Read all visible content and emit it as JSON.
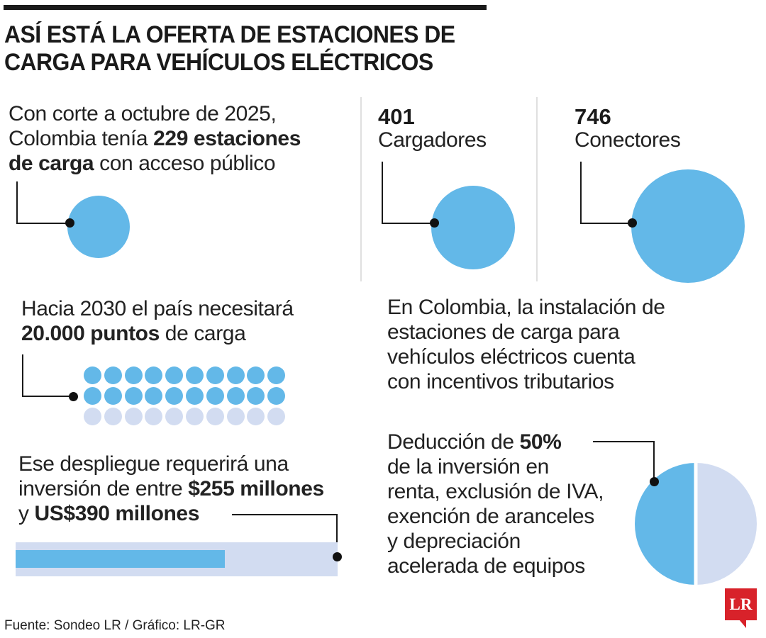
{
  "title_line1": "ASÍ ESTÁ LA OFERTA DE ESTACIONES DE",
  "title_line2": "CARGA PARA VEHÍCULOS ELÉCTRICOS",
  "stations": {
    "line1": "Con corte a octubre de 2025,",
    "line2_pre": "Colombia tenía ",
    "line2_bold": "229 estaciones",
    "line3_bold": "de carga",
    "line3_post": " con acceso público",
    "value": 229
  },
  "chargers": {
    "value": "401",
    "label": "Cargadores"
  },
  "connectors": {
    "value": "746",
    "label": "Conectores"
  },
  "target": {
    "line1": "Hacia 2030 el país necesitará",
    "line2_bold": "20.000 puntos",
    "line2_post": " de carga",
    "dot_rows": 3,
    "dot_cols": 10,
    "filled_rows": 2
  },
  "incentives": {
    "lines": [
      "En Colombia, la instalación de",
      "estaciones de carga para",
      "vehículos eléctricos cuenta",
      "con incentivos tributarios"
    ]
  },
  "investment": {
    "line1": "Ese despliegue requerirá una",
    "line2_pre": "inversión de entre ",
    "line2_bold": "$255 millones",
    "line3_pre": "y ",
    "line3_bold": "US$390 millones",
    "bar_fill_fraction": 0.65
  },
  "deduction": {
    "line1_pre": "Deducción de ",
    "line1_bold": "50%",
    "line2": "de la inversión en",
    "line3": "renta, exclusión de IVA,",
    "line4": "exención de aranceles",
    "line5": "y depreciación",
    "line6": "acelerada de equipos",
    "percent": 50
  },
  "source": "Fuente: Sondeo LR / Gráfico: LR-GR",
  "logo": "LR",
  "colors": {
    "accent_blue": "#63b8e8",
    "light_blue": "#d2dcf1",
    "logo_red": "#d8222a"
  }
}
